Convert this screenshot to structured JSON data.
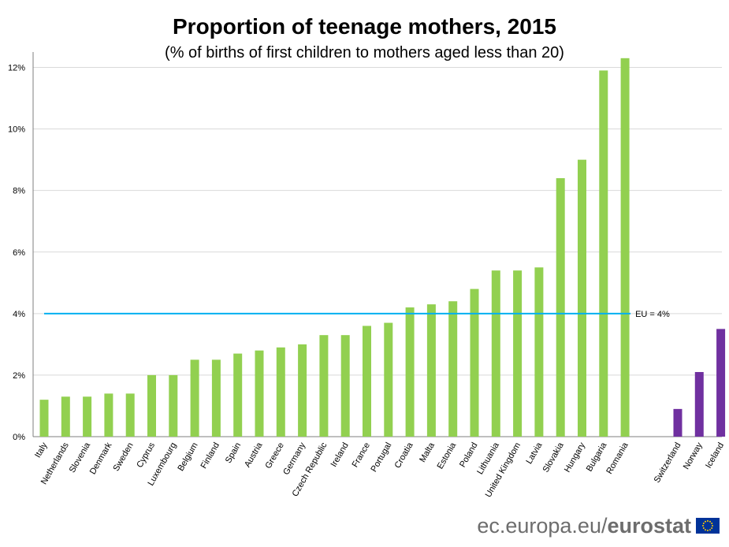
{
  "chart_data": {
    "type": "bar",
    "title": "Proportion of teenage mothers, 2015",
    "subtitle": "(% of births of first children to mothers aged less than 20)",
    "xlabel": "",
    "ylabel": "",
    "ylim": [
      0,
      12.5
    ],
    "yticks": [
      0,
      2,
      4,
      6,
      8,
      10,
      12
    ],
    "ytick_labels": [
      "0%",
      "2%",
      "4%",
      "6%",
      "8%",
      "10%",
      "12%"
    ],
    "grid": true,
    "categories": [
      "Italy",
      "Netherlands",
      "Slovenia",
      "Denmark",
      "Sweden",
      "Cyprus",
      "Luxembourg",
      "Belgium",
      "Finland",
      "Spain",
      "Austria",
      "Greece",
      "Germany",
      "Czech Republic",
      "Ireland",
      "France",
      "Portugal",
      "Croatia",
      "Malta",
      "Estonia",
      "Poland",
      "Lithuania",
      "United Kingdom",
      "Latvia",
      "Slovakia",
      "Hungary",
      "Bulgaria",
      "Romania",
      "Switzerland",
      "Norway",
      "Iceland"
    ],
    "values": [
      1.2,
      1.3,
      1.3,
      1.4,
      1.4,
      2.0,
      2.0,
      2.5,
      2.5,
      2.7,
      2.8,
      2.9,
      3.0,
      3.3,
      3.3,
      3.6,
      3.7,
      4.2,
      4.3,
      4.4,
      4.8,
      5.4,
      5.4,
      5.5,
      8.4,
      9.0,
      11.9,
      12.3,
      0.9,
      2.1,
      3.5
    ],
    "groups": [
      "eu",
      "eu",
      "eu",
      "eu",
      "eu",
      "eu",
      "eu",
      "eu",
      "eu",
      "eu",
      "eu",
      "eu",
      "eu",
      "eu",
      "eu",
      "eu",
      "eu",
      "eu",
      "eu",
      "eu",
      "eu",
      "eu",
      "eu",
      "eu",
      "eu",
      "eu",
      "eu",
      "eu",
      "non-eu",
      "non-eu",
      "non-eu"
    ],
    "colors": {
      "eu": "#92d050",
      "non-eu": "#7030a0",
      "reference": "#00b0f0",
      "grid": "#d9d9d9",
      "axis": "#7f7f7f"
    },
    "reference_line": {
      "value": 4,
      "label": "EU = 4%"
    }
  },
  "footer": {
    "site": "ec.europa.eu/",
    "brand": "eurostat"
  }
}
